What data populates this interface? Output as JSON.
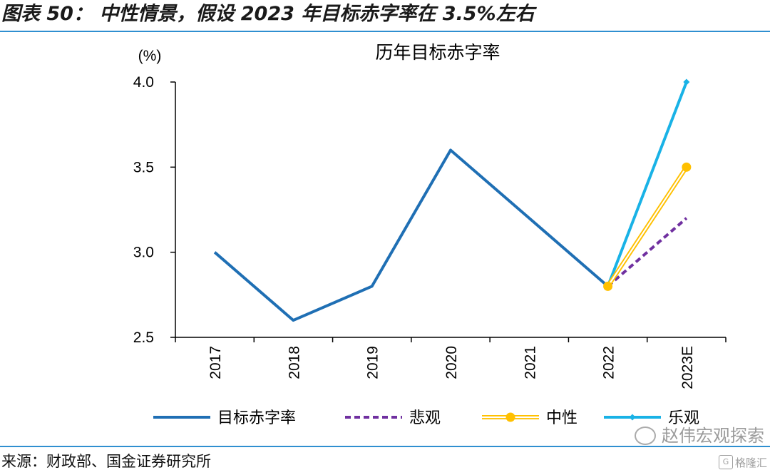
{
  "figure_title": "图表 50： 中性情景，假设 2023 年目标赤字率在 3.5%左右",
  "source": "来源：财政部、国金证券研究所",
  "watermark": "赵伟宏观探索",
  "watermark_badge": "格隆汇",
  "colors": {
    "target": "#1f6fb4",
    "pessimistic": "#7030a0",
    "neutral": "#ffc000",
    "optimistic": "#19b2e6",
    "rule": "#2f8fd0"
  },
  "chart_data": {
    "type": "line",
    "title": "历年目标赤字率",
    "ylabel": "(%)",
    "xlabel": "",
    "categories": [
      "2017",
      "2018",
      "2019",
      "2020",
      "2021",
      "2022",
      "2023E"
    ],
    "ylim": [
      2.5,
      4.0
    ],
    "yticks": [
      "4.0",
      "3.5",
      "3.0",
      "2.5"
    ],
    "grid": false,
    "legend_position": "bottom",
    "series": [
      {
        "name": "目标赤字率",
        "style": "solid",
        "marker": "none",
        "values": [
          3.0,
          2.6,
          2.8,
          3.6,
          3.2,
          2.8,
          null
        ]
      },
      {
        "name": "悲观",
        "style": "dashed",
        "marker": "none",
        "values": [
          null,
          null,
          null,
          null,
          null,
          2.8,
          3.2
        ]
      },
      {
        "name": "中性",
        "style": "double",
        "marker": "circle",
        "values": [
          null,
          null,
          null,
          null,
          null,
          2.8,
          3.5
        ]
      },
      {
        "name": "乐观",
        "style": "solid",
        "marker": "diamond",
        "values": [
          null,
          null,
          null,
          null,
          null,
          2.8,
          4.0
        ]
      }
    ]
  }
}
